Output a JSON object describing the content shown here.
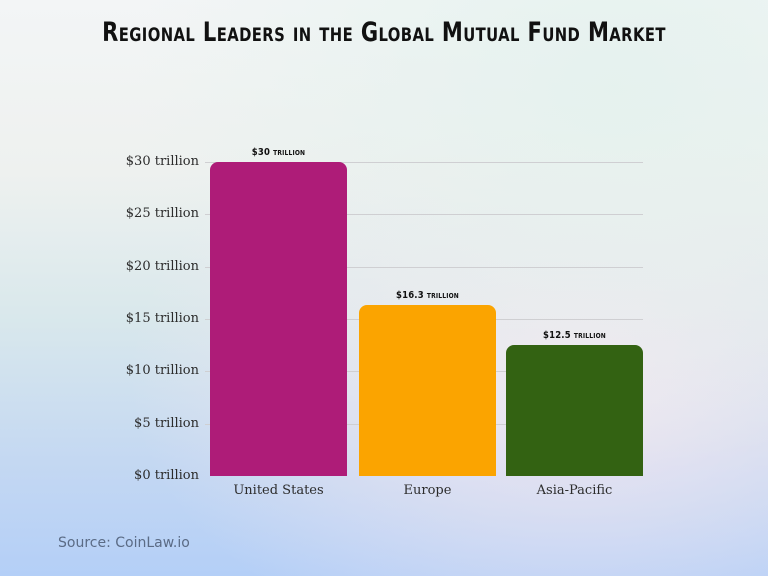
{
  "title": "Regional Leaders in the Global Mutual Fund Market",
  "source": "Source: CoinLaw.io",
  "chart_data": {
    "type": "bar",
    "title": "Regional Leaders in the Global Mutual Fund Market",
    "xlabel": "",
    "ylabel": "",
    "categories": [
      "United States",
      "Europe",
      "Asia-Pacific"
    ],
    "values": [
      30,
      16.3,
      12.5
    ],
    "unit": "trillion USD",
    "data_labels": [
      "$30 trillion",
      "$16.3 trillion",
      "$12.5 trillion"
    ],
    "colors": [
      "#ae1c78",
      "#fba400",
      "#336212"
    ],
    "ylim": [
      0,
      30
    ],
    "yticks": [
      0,
      5,
      10,
      15,
      20,
      25,
      30
    ],
    "ytick_labels": [
      "$0 trillion",
      "$5 trillion",
      "$10 trillion",
      "$15 trillion",
      "$20 trillion",
      "$25 trillion",
      "$30 trillion"
    ],
    "grid": true,
    "legend": "none",
    "source": "Source: CoinLaw.io"
  }
}
